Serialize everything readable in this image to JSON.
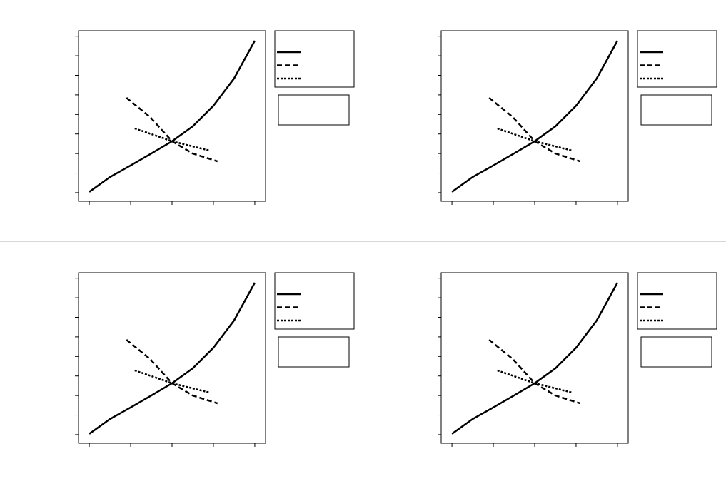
{
  "chart_data": [
    {
      "type": "line",
      "xlim": [
        -0.26,
        4.26
      ],
      "ylim": [
        -0.44,
        8.28
      ],
      "xticks": [
        0,
        1,
        2,
        3,
        4
      ],
      "yticks": [
        0,
        1,
        2,
        3,
        4,
        5,
        6,
        7,
        8
      ],
      "series": [
        {
          "color": "#000000",
          "dash": "solid",
          "x": [
            0,
            0.5,
            1,
            1.5,
            2,
            2.5,
            3,
            3.5,
            4
          ],
          "values": [
            0.04,
            0.8,
            1.39,
            2.0,
            2.63,
            3.39,
            4.45,
            5.84,
            7.77
          ]
        },
        {
          "color": "#000000",
          "dash": "dashed",
          "x": [
            0.9,
            1.47,
            2.0,
            2.5,
            3.1
          ],
          "values": [
            4.85,
            3.87,
            2.63,
            2.0,
            1.6
          ]
        },
        {
          "color": "#000000",
          "dash": "dotted",
          "x": [
            1.1,
            2.0,
            2.91
          ],
          "values": [
            3.28,
            2.63,
            2.15
          ]
        }
      ]
    },
    {
      "type": "line",
      "xlim": [
        -0.26,
        4.26
      ],
      "ylim": [
        -0.44,
        8.28
      ],
      "xticks": [
        0,
        1,
        2,
        3,
        4
      ],
      "yticks": [
        0,
        1,
        2,
        3,
        4,
        5,
        6,
        7,
        8
      ],
      "series": [
        {
          "color": "#000000",
          "dash": "solid",
          "x": [
            0,
            0.5,
            1,
            1.5,
            2,
            2.5,
            3,
            3.5,
            4
          ],
          "values": [
            0.04,
            0.8,
            1.39,
            2.0,
            2.63,
            3.39,
            4.45,
            5.84,
            7.77
          ]
        },
        {
          "color": "#000000",
          "dash": "dashed",
          "x": [
            0.9,
            1.47,
            2.0,
            2.5,
            3.1
          ],
          "values": [
            4.85,
            3.87,
            2.63,
            2.0,
            1.6
          ]
        },
        {
          "color": "#000000",
          "dash": "dotted",
          "x": [
            1.1,
            2.0,
            2.91
          ],
          "values": [
            3.28,
            2.63,
            2.15
          ]
        }
      ]
    },
    {
      "type": "line",
      "xlim": [
        -0.26,
        4.26
      ],
      "ylim": [
        -0.44,
        8.28
      ],
      "xticks": [
        0,
        1,
        2,
        3,
        4
      ],
      "yticks": [
        0,
        1,
        2,
        3,
        4,
        5,
        6,
        7,
        8
      ],
      "series": [
        {
          "color": "#000000",
          "dash": "solid",
          "x": [
            0,
            0.5,
            1,
            1.5,
            2,
            2.5,
            3,
            3.5,
            4
          ],
          "values": [
            0.04,
            0.8,
            1.39,
            2.0,
            2.63,
            3.39,
            4.45,
            5.84,
            7.77
          ]
        },
        {
          "color": "#000000",
          "dash": "dashed",
          "x": [
            0.9,
            1.47,
            2.0,
            2.5,
            3.1
          ],
          "values": [
            4.85,
            3.87,
            2.63,
            2.0,
            1.6
          ]
        },
        {
          "color": "#000000",
          "dash": "dotted",
          "x": [
            1.1,
            2.0,
            2.91
          ],
          "values": [
            3.28,
            2.63,
            2.15
          ]
        }
      ]
    },
    {
      "type": "line",
      "xlim": [
        -0.26,
        4.26
      ],
      "ylim": [
        -0.44,
        8.28
      ],
      "xticks": [
        0,
        1,
        2,
        3,
        4
      ],
      "yticks": [
        0,
        1,
        2,
        3,
        4,
        5,
        6,
        7,
        8
      ],
      "series": [
        {
          "color": "#000000",
          "dash": "solid",
          "x": [
            0,
            0.5,
            1,
            1.5,
            2,
            2.5,
            3,
            3.5,
            4
          ],
          "values": [
            0.04,
            0.8,
            1.39,
            2.0,
            2.63,
            3.39,
            4.45,
            5.84,
            7.77
          ]
        },
        {
          "color": "#000000",
          "dash": "dashed",
          "x": [
            0.9,
            1.47,
            2.0,
            2.5,
            3.1
          ],
          "values": [
            4.85,
            3.87,
            2.63,
            2.0,
            1.6
          ]
        },
        {
          "color": "#000000",
          "dash": "dotted",
          "x": [
            1.1,
            2.0,
            2.91
          ],
          "values": [
            3.28,
            2.63,
            2.15
          ]
        }
      ]
    }
  ]
}
